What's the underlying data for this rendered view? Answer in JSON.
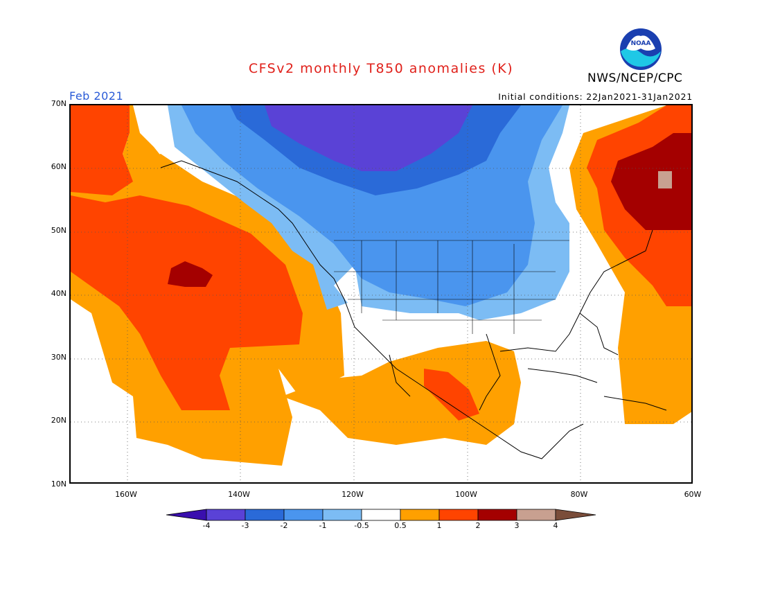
{
  "header": {
    "title": "CFSv2 monthly T850 anomalies (K)",
    "agency": "NWS/NCEP/CPC",
    "logo_text": "NOAA",
    "month": "Feb 2021",
    "initial_conditions": "Initial conditions: 22Jan2021-31Jan2021"
  },
  "axes": {
    "lat_labels": [
      "70N",
      "60N",
      "50N",
      "40N",
      "30N",
      "20N",
      "10N"
    ],
    "lon_labels": [
      "160W",
      "140W",
      "120W",
      "100W",
      "80W",
      "60W"
    ]
  },
  "colorbar": {
    "tick_labels": [
      "-4",
      "-3",
      "-2",
      "-1",
      "-0.5",
      "0.5",
      "1",
      "2",
      "3",
      "4"
    ],
    "colors": [
      "#3a0fae",
      "#5a42d6",
      "#2a6ad8",
      "#4a95ee",
      "#7cbcf4",
      "#ffffff",
      "#ffa000",
      "#ff4400",
      "#a40000",
      "#c8a090",
      "#7a4d3a"
    ]
  },
  "map": {
    "region": "North America and adjacent Pacific/Atlantic",
    "extent": {
      "lon": [
        -170,
        -60
      ],
      "lat": [
        10,
        70
      ]
    }
  }
}
